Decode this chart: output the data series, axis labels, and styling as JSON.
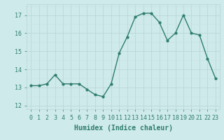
{
  "x": [
    0,
    1,
    2,
    3,
    4,
    5,
    6,
    7,
    8,
    9,
    10,
    11,
    12,
    13,
    14,
    15,
    16,
    17,
    18,
    19,
    20,
    21,
    22,
    23
  ],
  "y": [
    13.1,
    13.1,
    13.2,
    13.7,
    13.2,
    13.2,
    13.2,
    12.9,
    12.6,
    12.5,
    13.2,
    14.9,
    15.8,
    16.9,
    17.1,
    17.1,
    16.6,
    15.6,
    16.0,
    17.0,
    16.0,
    15.9,
    14.6,
    13.5
  ],
  "line_color": "#2e7d6e",
  "marker": "o",
  "marker_size": 2,
  "line_width": 1.0,
  "xlabel": "Humidex (Indice chaleur)",
  "xlim": [
    -0.5,
    23.5
  ],
  "ylim": [
    11.8,
    17.6
  ],
  "yticks": [
    12,
    13,
    14,
    15,
    16,
    17
  ],
  "xticks": [
    0,
    1,
    2,
    3,
    4,
    5,
    6,
    7,
    8,
    9,
    10,
    11,
    12,
    13,
    14,
    15,
    16,
    17,
    18,
    19,
    20,
    21,
    22,
    23
  ],
  "bg_color": "#ceeaea",
  "grid_major_color": "#b8d4d4",
  "grid_minor_color": "#c8e0e0",
  "tick_color": "#2e7d6e",
  "label_color": "#2e7d6e",
  "xlabel_fontsize": 7,
  "tick_fontsize": 6
}
